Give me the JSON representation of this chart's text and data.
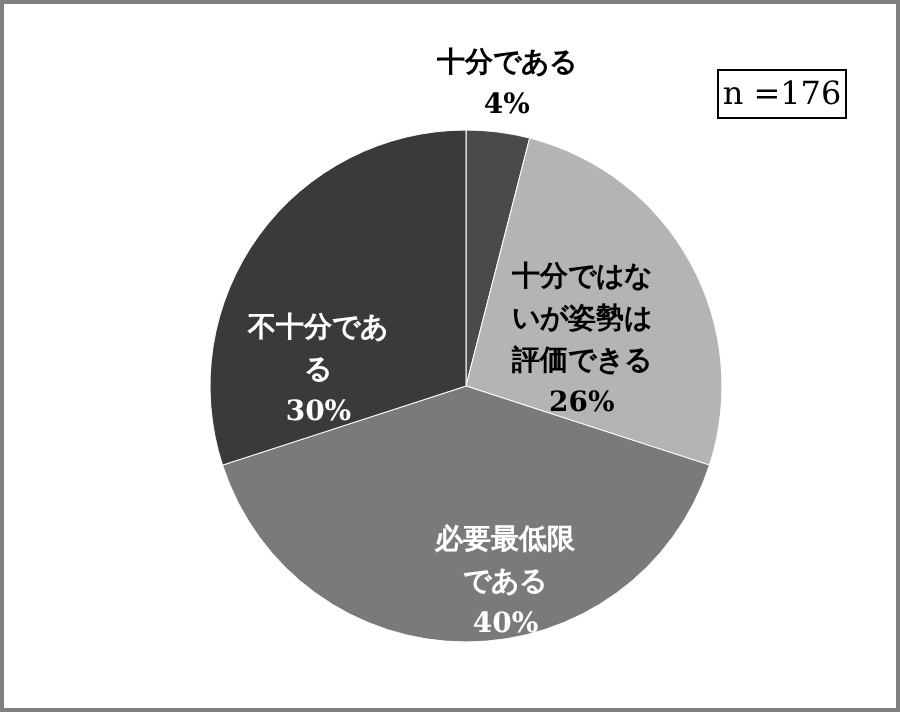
{
  "chart_data": {
    "type": "pie",
    "categories": [
      "十分である",
      "十分ではないが姿勢は評価できる",
      "必要最低限である",
      "不十分である"
    ],
    "values": [
      4,
      26,
      40,
      30
    ],
    "colors": [
      "#4a4a4a",
      "#b4b4b4",
      "#7a7a7a",
      "#3a3a3a"
    ],
    "value_labels": [
      "4%",
      "26%",
      "40%",
      "30%"
    ],
    "annotations": [
      "n =176"
    ]
  }
}
